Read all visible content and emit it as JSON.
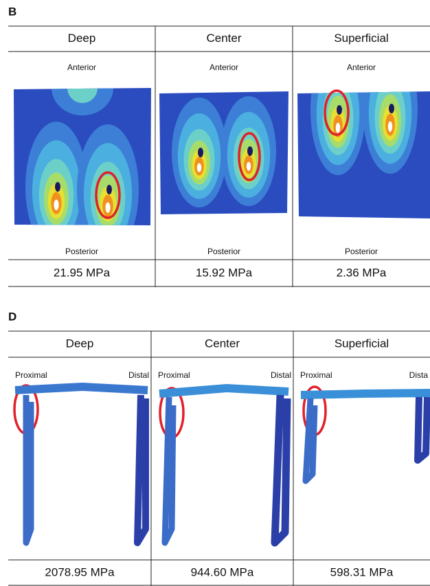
{
  "panels": [
    {
      "label": "B",
      "columns": [
        {
          "header": "Deep",
          "top": "Anterior",
          "bottom": "Posterior",
          "value": "21.95 MPa"
        },
        {
          "header": "Center",
          "top": "Anterior",
          "bottom": "Posterior",
          "value": "15.92 MPa"
        },
        {
          "header": "Superficial",
          "top": "Anterior",
          "bottom": "Posterior",
          "value": "2.36 MPa"
        }
      ]
    },
    {
      "label": "D",
      "columns": [
        {
          "header": "Deep",
          "left": "Proximal",
          "right": "Distal",
          "value": "2078.95 MPa"
        },
        {
          "header": "Center",
          "left": "Proximal",
          "right": "Distal",
          "value": "944.60 MPa"
        },
        {
          "header": "Superficial",
          "left": "Proximal",
          "right": "Dista",
          "value": "598.31 MPa"
        }
      ]
    }
  ]
}
